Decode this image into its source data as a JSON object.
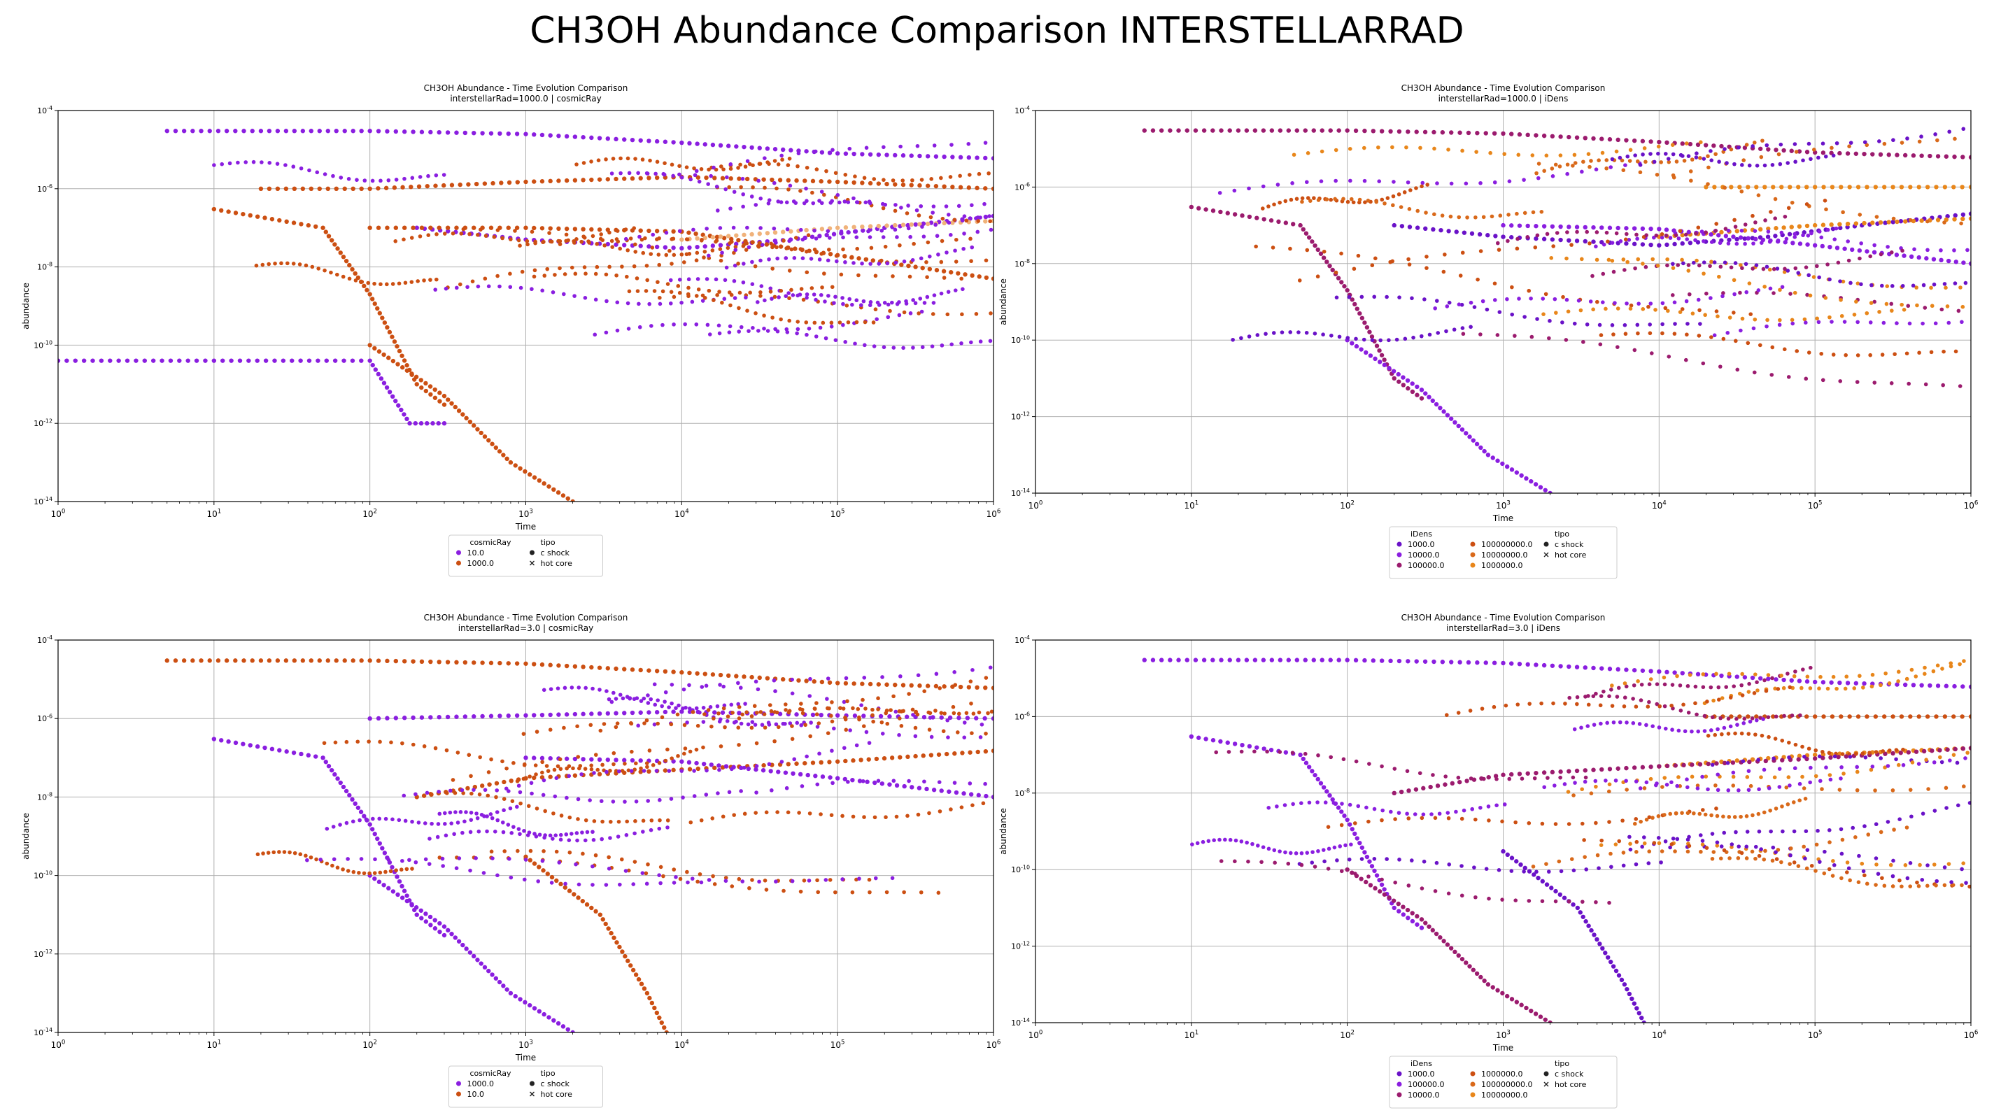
{
  "figure_title": "CH3OH Abundance Comparison INTERSTELLARRAD",
  "colors": {
    "purple": "#8a1ee0",
    "violet": "#6a12c8",
    "magenta": "#9b1b6e",
    "orange": "#cc4f12",
    "amber": "#e8861a",
    "light_orange": "#f0b27a",
    "lavender": "#c89af2",
    "grid": "#b0b0b0"
  },
  "chart_data": [
    {
      "type": "scatter",
      "title": "CH3OH Abundance - Time Evolution Comparison",
      "subtitle": "interstellarRad=1000.0 | cosmicRay",
      "xlabel": "Time",
      "ylabel": "abundance",
      "xscale": "log",
      "yscale": "log",
      "xlim": [
        1,
        1000000
      ],
      "ylim": [
        1e-14,
        0.0001
      ],
      "xticks": [
        "10^0",
        "10^1",
        "10^2",
        "10^3",
        "10^4",
        "10^5",
        "10^6"
      ],
      "yticks": [
        "10^-14",
        "10^-12",
        "10^-10",
        "10^-8",
        "10^-6",
        "10^-4"
      ],
      "grid": true,
      "legend_location": "below",
      "legend": {
        "hue_title": "cosmicRay",
        "hue_entries": [
          {
            "label": "10.0",
            "color": "#8a1ee0"
          },
          {
            "label": "1000.0",
            "color": "#cc4f12"
          }
        ],
        "style_title": "tipo",
        "style_entries": [
          {
            "label": "c shock",
            "marker": "circle"
          },
          {
            "label": "hot core",
            "marker": "x"
          }
        ]
      },
      "series": [
        {
          "color": "#8a1ee0",
          "x": [
            5,
            20,
            100,
            1000,
            10000,
            100000,
            1000000
          ],
          "y": [
            3e-05,
            3e-05,
            3e-05,
            2.5e-05,
            1.5e-05,
            8e-06,
            6e-06
          ]
        },
        {
          "color": "#8a1ee0",
          "x": [
            200,
            1000,
            10000,
            50000,
            200000,
            1000000
          ],
          "y": [
            1e-07,
            5e-08,
            3e-08,
            5e-08,
            1e-07,
            2e-07
          ]
        },
        {
          "color": "#8a1ee0",
          "x": [
            1,
            100,
            180,
            300
          ],
          "y": [
            4e-11,
            4e-11,
            1e-12,
            1e-12
          ]
        },
        {
          "color": "#cc4f12",
          "x": [
            10,
            50,
            100,
            200,
            300
          ],
          "y": [
            3e-07,
            1e-07,
            2e-09,
            1e-11,
            3e-12
          ]
        },
        {
          "color": "#cc4f12",
          "x": [
            20,
            100,
            1000,
            10000,
            100000,
            1000000
          ],
          "y": [
            1e-06,
            1e-06,
            1.5e-06,
            2e-06,
            1.5e-06,
            1e-06
          ]
        },
        {
          "color": "#cc4f12",
          "x": [
            100,
            300,
            800,
            2000
          ],
          "y": [
            1e-10,
            5e-12,
            1e-13,
            1e-14
          ]
        },
        {
          "color": "#cc4f12",
          "x": [
            100,
            1000,
            10000,
            100000,
            1000000
          ],
          "y": [
            1e-07,
            1e-07,
            8e-08,
            2e-08,
            5e-09
          ]
        },
        {
          "color": "#f0b27a",
          "x": [
            10000,
            100000,
            1000000
          ],
          "y": [
            5e-08,
            1e-07,
            1.5e-07
          ]
        }
      ]
    },
    {
      "type": "scatter",
      "title": "CH3OH Abundance - Time Evolution Comparison",
      "subtitle": "interstellarRad=1000.0 | iDens",
      "xlabel": "Time",
      "ylabel": "abundance",
      "xscale": "log",
      "yscale": "log",
      "xlim": [
        1,
        1000000
      ],
      "ylim": [
        1e-14,
        0.0001
      ],
      "xticks": [
        "10^0",
        "10^1",
        "10^2",
        "10^3",
        "10^4",
        "10^5",
        "10^6"
      ],
      "yticks": [
        "10^-14",
        "10^-12",
        "10^-10",
        "10^-8",
        "10^-6",
        "10^-4"
      ],
      "grid": true,
      "legend_location": "below",
      "legend": {
        "hue_title": "iDens",
        "hue_entries": [
          {
            "label": "1000.0",
            "color": "#6a12c8"
          },
          {
            "label": "10000.0",
            "color": "#8a1ee0"
          },
          {
            "label": "100000.0",
            "color": "#9b1b6e"
          },
          {
            "label": "100000000.0",
            "color": "#cc4f12"
          },
          {
            "label": "10000000.0",
            "color": "#d9691a"
          },
          {
            "label": "1000000.0",
            "color": "#e8861a"
          }
        ],
        "style_title": "tipo",
        "style_entries": [
          {
            "label": "c shock",
            "marker": "circle"
          },
          {
            "label": "hot core",
            "marker": "x"
          }
        ]
      },
      "series": [
        {
          "color": "#9b1b6e",
          "x": [
            5,
            20,
            100,
            1000,
            10000,
            100000,
            1000000
          ],
          "y": [
            3e-05,
            3e-05,
            3e-05,
            2.5e-05,
            1.5e-05,
            8e-06,
            6e-06
          ]
        },
        {
          "color": "#6a12c8",
          "x": [
            200,
            1000,
            10000,
            50000,
            200000,
            1000000
          ],
          "y": [
            1e-07,
            5e-08,
            3e-08,
            5e-08,
            1e-07,
            2e-07
          ]
        },
        {
          "color": "#9b1b6e",
          "x": [
            10,
            50,
            100,
            200,
            300
          ],
          "y": [
            3e-07,
            1e-07,
            2e-09,
            1e-11,
            3e-12
          ]
        },
        {
          "color": "#8a1ee0",
          "x": [
            100,
            300,
            800,
            2000
          ],
          "y": [
            1e-10,
            5e-12,
            1e-13,
            1e-14
          ]
        },
        {
          "color": "#e8861a",
          "x": [
            20000,
            100000,
            1000000
          ],
          "y": [
            1e-06,
            1e-06,
            1e-06
          ]
        },
        {
          "color": "#e8861a",
          "x": [
            10000,
            100000,
            1000000
          ],
          "y": [
            5e-08,
            1e-07,
            1.5e-07
          ]
        },
        {
          "color": "#8a1ee0",
          "x": [
            1000,
            10000,
            100000,
            1000000
          ],
          "y": [
            1e-07,
            8e-08,
            3e-08,
            1e-08
          ]
        }
      ]
    },
    {
      "type": "scatter",
      "title": "CH3OH Abundance - Time Evolution Comparison",
      "subtitle": "interstellarRad=3.0 | cosmicRay",
      "xlabel": "Time",
      "ylabel": "abundance",
      "xscale": "log",
      "yscale": "log",
      "xlim": [
        1,
        1000000
      ],
      "ylim": [
        1e-14,
        0.0001
      ],
      "xticks": [
        "10^0",
        "10^1",
        "10^2",
        "10^3",
        "10^4",
        "10^5",
        "10^6"
      ],
      "yticks": [
        "10^-14",
        "10^-12",
        "10^-10",
        "10^-8",
        "10^-6",
        "10^-4"
      ],
      "grid": true,
      "legend_location": "below",
      "legend": {
        "hue_title": "cosmicRay",
        "hue_entries": [
          {
            "label": "1000.0",
            "color": "#8a1ee0"
          },
          {
            "label": "10.0",
            "color": "#cc4f12"
          }
        ],
        "style_title": "tipo",
        "style_entries": [
          {
            "label": "c shock",
            "marker": "circle"
          },
          {
            "label": "hot core",
            "marker": "x"
          }
        ]
      },
      "series": [
        {
          "color": "#cc4f12",
          "x": [
            5,
            20,
            100,
            1000,
            10000,
            100000,
            1000000
          ],
          "y": [
            3e-05,
            3e-05,
            3e-05,
            2.5e-05,
            1.5e-05,
            8e-06,
            6e-06
          ]
        },
        {
          "color": "#8a1ee0",
          "x": [
            10,
            50,
            100,
            200,
            300
          ],
          "y": [
            3e-07,
            1e-07,
            2e-09,
            1e-11,
            3e-12
          ]
        },
        {
          "color": "#8a1ee0",
          "x": [
            100,
            1000,
            10000,
            100000,
            1000000
          ],
          "y": [
            1e-06,
            1.2e-06,
            1.5e-06,
            1.2e-06,
            1e-06
          ]
        },
        {
          "color": "#cc4f12",
          "x": [
            1000,
            3000,
            6000,
            8000
          ],
          "y": [
            3e-10,
            1e-11,
            1e-13,
            1e-14
          ]
        },
        {
          "color": "#cc4f12",
          "x": [
            200,
            1000,
            10000,
            100000,
            1000000
          ],
          "y": [
            1e-08,
            3e-08,
            5e-08,
            8e-08,
            1.5e-07
          ]
        },
        {
          "color": "#8a1ee0",
          "x": [
            100,
            300,
            800,
            2000
          ],
          "y": [
            1e-10,
            5e-12,
            1e-13,
            1e-14
          ]
        },
        {
          "color": "#8a1ee0",
          "x": [
            1000,
            10000,
            100000,
            1000000
          ],
          "y": [
            1e-07,
            8e-08,
            3e-08,
            1e-08
          ]
        }
      ]
    },
    {
      "type": "scatter",
      "title": "CH3OH Abundance - Time Evolution Comparison",
      "subtitle": "interstellarRad=3.0 | iDens",
      "xlabel": "Time",
      "ylabel": "abundance",
      "xscale": "log",
      "yscale": "log",
      "xlim": [
        1,
        1000000
      ],
      "ylim": [
        1e-14,
        0.0001
      ],
      "xticks": [
        "10^0",
        "10^1",
        "10^2",
        "10^3",
        "10^4",
        "10^5",
        "10^6"
      ],
      "yticks": [
        "10^-14",
        "10^-12",
        "10^-10",
        "10^-8",
        "10^-6",
        "10^-4"
      ],
      "grid": true,
      "legend_location": "below",
      "legend": {
        "hue_title": "iDens",
        "hue_entries": [
          {
            "label": "1000.0",
            "color": "#6a12c8"
          },
          {
            "label": "100000.0",
            "color": "#8a1ee0"
          },
          {
            "label": "10000.0",
            "color": "#9b1b6e"
          },
          {
            "label": "1000000.0",
            "color": "#cc4f12"
          },
          {
            "label": "100000000.0",
            "color": "#d9691a"
          },
          {
            "label": "10000000.0",
            "color": "#e8861a"
          }
        ],
        "style_title": "tipo",
        "style_entries": [
          {
            "label": "c shock",
            "marker": "circle"
          },
          {
            "label": "hot core",
            "marker": "x"
          }
        ]
      },
      "series": [
        {
          "color": "#8a1ee0",
          "x": [
            5,
            20,
            100,
            1000,
            10000,
            100000,
            1000000
          ],
          "y": [
            3e-05,
            3e-05,
            3e-05,
            2.5e-05,
            1.5e-05,
            8e-06,
            6e-06
          ]
        },
        {
          "color": "#8a1ee0",
          "x": [
            10,
            50,
            100,
            200,
            300
          ],
          "y": [
            3e-07,
            1e-07,
            2e-09,
            1e-11,
            3e-12
          ]
        },
        {
          "color": "#6a12c8",
          "x": [
            1000,
            3000,
            6000,
            8000
          ],
          "y": [
            3e-10,
            1e-11,
            1e-13,
            1e-14
          ]
        },
        {
          "color": "#9b1b6e",
          "x": [
            100,
            300,
            800,
            2000
          ],
          "y": [
            1e-10,
            5e-12,
            1e-13,
            1e-14
          ]
        },
        {
          "color": "#cc4f12",
          "x": [
            20000,
            100000,
            1000000
          ],
          "y": [
            1e-06,
            1e-06,
            1e-06
          ]
        },
        {
          "color": "#e8861a",
          "x": [
            10000,
            100000,
            1000000
          ],
          "y": [
            5e-08,
            1e-07,
            1.5e-07
          ]
        },
        {
          "color": "#9b1b6e",
          "x": [
            200,
            1000,
            10000,
            100000,
            1000000
          ],
          "y": [
            1e-08,
            3e-08,
            5e-08,
            8e-08,
            1.5e-07
          ]
        }
      ]
    }
  ]
}
